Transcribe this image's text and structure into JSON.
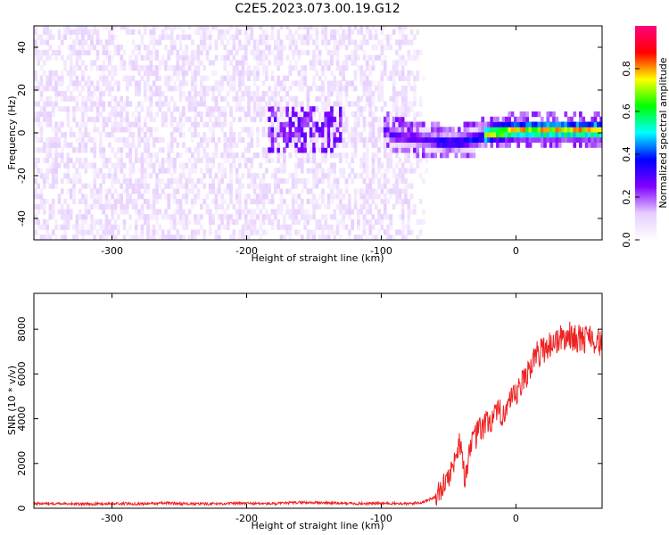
{
  "title": "C2E5.2023.073.00.19.G12",
  "chart_data": [
    {
      "type": "heatmap",
      "xlabel": "Height of straight line (km)",
      "ylabel": "Frequency (Hz)",
      "xlim": [
        -358,
        64
      ],
      "ylim": [
        -50,
        50
      ],
      "x_ticks": [
        -300,
        -200,
        -100,
        0
      ],
      "x_tick_labels": [
        "-300",
        "-200",
        "-100",
        "0"
      ],
      "y_ticks": [
        -40,
        -20,
        0,
        20,
        40
      ],
      "y_tick_labels": [
        "-40",
        "-20",
        "0",
        "20",
        "40"
      ],
      "signal_cutoff_x": -72,
      "signal_center_frequency": [
        [
          -95,
          -2
        ],
        [
          -70,
          -4
        ],
        [
          -50,
          -6
        ],
        [
          -30,
          -4
        ],
        [
          -20,
          -1
        ],
        [
          0,
          0
        ],
        [
          64,
          0
        ]
      ],
      "colorbar": {
        "label": "Normalized spectral amplitude",
        "range": [
          0,
          1
        ],
        "ticks": [
          0.0,
          0.2,
          0.4,
          0.6,
          0.8
        ],
        "tick_labels": [
          "0.0",
          "0.2",
          "0.4",
          "0.6",
          "0.8"
        ],
        "colors": [
          "#ffffff",
          "#e6ccff",
          "#8000ff",
          "#0000ff",
          "#00ffff",
          "#00ff00",
          "#ffff00",
          "#ff0000",
          "#ff0080"
        ]
      },
      "grid": false
    },
    {
      "type": "line",
      "xlabel": "Height of straight line (km)",
      "ylabel": "SNR (10 * v/v)",
      "xlim": [
        -358,
        64
      ],
      "ylim": [
        0,
        9600
      ],
      "x_ticks": [
        -300,
        -200,
        -100,
        0
      ],
      "x_tick_labels": [
        "-300",
        "-200",
        "-100",
        "0"
      ],
      "y_ticks": [
        0,
        2000,
        4000,
        6000,
        8000
      ],
      "y_tick_labels": [
        "0",
        "2000",
        "4000",
        "6000",
        "8000"
      ],
      "series_color": "#ee2222",
      "series": [
        {
          "x": [
            -358,
            -340,
            -320,
            -300,
            -280,
            -260,
            -240,
            -220,
            -200,
            -180,
            -160,
            -140,
            -120,
            -100,
            -80,
            -70,
            -60,
            -55,
            -50,
            -45,
            -42,
            -40,
            -38,
            -36,
            -34,
            -30,
            -25,
            -20,
            -15,
            -10,
            -5,
            0,
            5,
            10,
            15,
            20,
            25,
            30,
            35,
            40,
            45,
            50,
            55,
            60,
            64
          ],
          "y": [
            200,
            220,
            180,
            210,
            200,
            230,
            190,
            210,
            220,
            200,
            260,
            240,
            210,
            220,
            200,
            260,
            500,
            900,
            1400,
            2200,
            3000,
            2600,
            1200,
            2000,
            2800,
            3200,
            3600,
            3900,
            4100,
            4300,
            4600,
            5000,
            5600,
            6300,
            6800,
            7100,
            7300,
            7500,
            7600,
            7700,
            7600,
            7500,
            7800,
            7400,
            7400
          ]
        }
      ],
      "grid": false
    }
  ]
}
